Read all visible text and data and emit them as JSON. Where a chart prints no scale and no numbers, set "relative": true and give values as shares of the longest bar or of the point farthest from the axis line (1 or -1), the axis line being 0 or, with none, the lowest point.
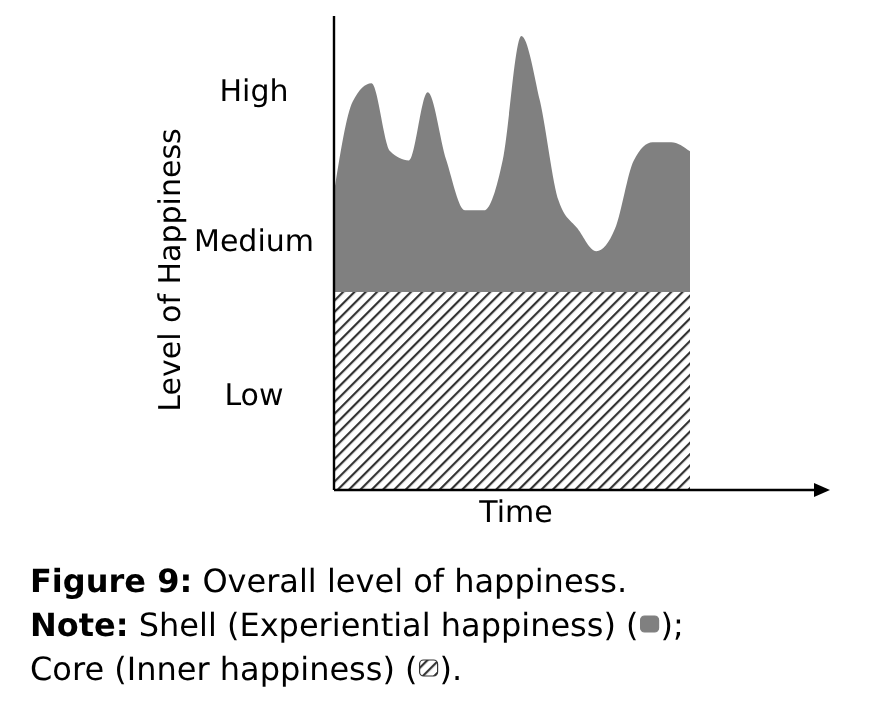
{
  "chart_data": {
    "type": "area",
    "title": "Figure 9: Overall level of happiness.",
    "xlabel": "Time",
    "ylabel": "Level of Happiness",
    "relative": true,
    "annotations": [
      "High",
      "Medium",
      "Low",
      "Note: Shell (Experiential happiness) (",
      ");",
      "Core (Inner happiness) (",
      ")."
    ],
    "categories": [
      null,
      null,
      null,
      null,
      null,
      null,
      null,
      null,
      null,
      null,
      null,
      null,
      null,
      null,
      null,
      null,
      null,
      null,
      null,
      null
    ],
    "series": [
      {
        "color": "#808080",
        "values": [
          0.656,
          0.856,
          0.896,
          0.746,
          0.726,
          0.876,
          0.726,
          0.616,
          0.616,
          0.726,
          1,
          0.856,
          0.636,
          0.576,
          0.526,
          0.576,
          0.726,
          0.766,
          0.766,
          0.746
        ]
      },
      {
        "color": "#333333",
        "values": [
          0.436,
          0.436,
          0.436,
          0.436,
          0.436,
          0.436,
          0.436,
          0.436,
          0.436,
          0.436,
          0.436,
          0.436,
          0.436,
          0.436,
          0.436,
          0.436,
          0.436,
          0.436,
          0.436,
          0.436
        ]
      }
    ]
  }
}
